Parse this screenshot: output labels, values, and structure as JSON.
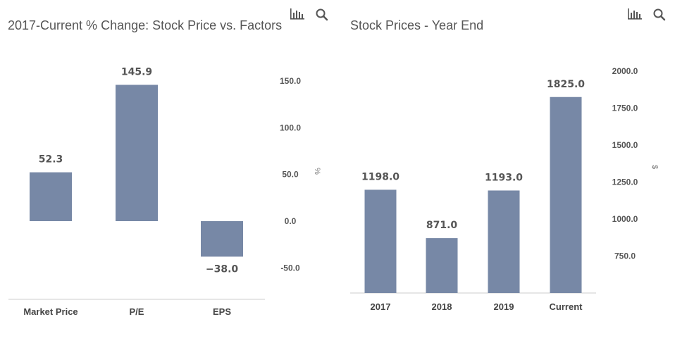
{
  "toolbar": {
    "chart_icon": "bar-chart-icon",
    "search_icon": "search-icon"
  },
  "colors": {
    "bar": "#7788a6",
    "axis": "#cccccc",
    "icon": "#555555"
  },
  "chart_data": [
    {
      "type": "bar",
      "title": "2017-Current % Change: Stock Price vs. Factors",
      "categories": [
        "Market Price",
        "P/E",
        "EPS"
      ],
      "values": [
        52.3,
        145.9,
        -38.0
      ],
      "value_labels": [
        "52.3",
        "145.9",
        "−38.0"
      ],
      "ylabel": "%",
      "ylim": [
        -75,
        150
      ],
      "yticks": [
        150,
        100,
        50,
        0,
        -50
      ],
      "ytick_labels": [
        "150.0",
        "100.0",
        "50.0",
        "0.0",
        "-50.0"
      ],
      "axis_side": "right",
      "grid": false
    },
    {
      "type": "bar",
      "title": "Stock Prices - Year End",
      "categories": [
        "2017",
        "2018",
        "2019",
        "Current"
      ],
      "values": [
        1198.0,
        871.0,
        1193.0,
        1825.0
      ],
      "value_labels": [
        "1198.0",
        "871.0",
        "1193.0",
        "1825.0"
      ],
      "ylabel": "$",
      "ylim": [
        500,
        2000
      ],
      "yticks": [
        2000,
        1750,
        1500,
        1250,
        1000,
        750
      ],
      "ytick_labels": [
        "2000.0",
        "1750.0",
        "1500.0",
        "1250.0",
        "1000.0",
        "750.0"
      ],
      "axis_side": "right",
      "grid": false
    }
  ]
}
